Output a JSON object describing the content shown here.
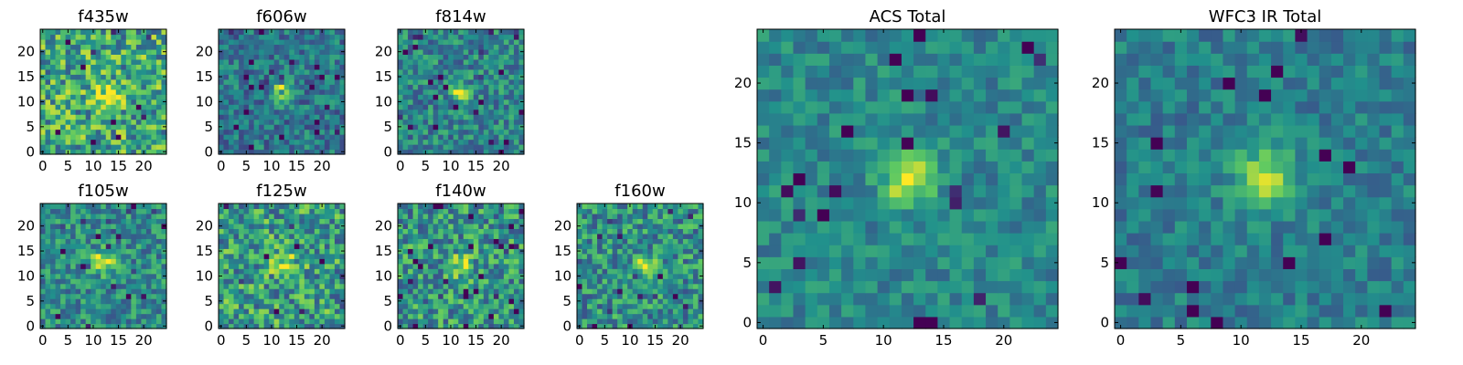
{
  "figure": {
    "colormap": "viridis",
    "colormap_stops": [
      "#440154",
      "#3b528b",
      "#21918c",
      "#5ec962",
      "#fde725"
    ]
  },
  "chart_data": [
    {
      "type": "heatmap",
      "title": "f435w",
      "grid_size": 25,
      "center": [
        13,
        11
      ],
      "peak": 0.35,
      "sigma": 2.0,
      "noise": 0.32,
      "base": 0.6,
      "seed": 11,
      "xticks": [
        "0",
        "5",
        "10",
        "15",
        "20"
      ],
      "yticks": [
        "0",
        "5",
        "10",
        "15",
        "20"
      ],
      "xlim": [
        0,
        25
      ],
      "ylim": [
        0,
        25
      ]
    },
    {
      "type": "heatmap",
      "title": "f606w",
      "grid_size": 25,
      "center": [
        12,
        12
      ],
      "peak": 0.55,
      "sigma": 1.3,
      "noise": 0.2,
      "base": 0.4,
      "seed": 23,
      "xticks": [
        "0",
        "5",
        "10",
        "15",
        "20"
      ],
      "yticks": [
        "0",
        "5",
        "10",
        "15",
        "20"
      ],
      "xlim": [
        0,
        25
      ],
      "ylim": [
        0,
        25
      ]
    },
    {
      "type": "heatmap",
      "title": "f814w",
      "grid_size": 25,
      "center": [
        12,
        12
      ],
      "peak": 0.5,
      "sigma": 1.3,
      "noise": 0.22,
      "base": 0.45,
      "seed": 37,
      "xticks": [
        "0",
        "5",
        "10",
        "15",
        "20"
      ],
      "yticks": [
        "0",
        "5",
        "10",
        "15",
        "20"
      ],
      "xlim": [
        0,
        25
      ],
      "ylim": [
        0,
        25
      ]
    },
    {
      "type": "heatmap",
      "title": "f105w",
      "grid_size": 25,
      "center": [
        12,
        13
      ],
      "peak": 0.45,
      "sigma": 1.6,
      "noise": 0.22,
      "base": 0.48,
      "seed": 41,
      "xticks": [
        "0",
        "5",
        "10",
        "15",
        "20"
      ],
      "yticks": [
        "0",
        "5",
        "10",
        "15",
        "20"
      ],
      "xlim": [
        0,
        25
      ],
      "ylim": [
        0,
        25
      ]
    },
    {
      "type": "heatmap",
      "title": "f125w",
      "grid_size": 25,
      "center": [
        13,
        12
      ],
      "peak": 0.4,
      "sigma": 1.8,
      "noise": 0.3,
      "base": 0.55,
      "seed": 53,
      "xticks": [
        "0",
        "5",
        "10",
        "15",
        "20"
      ],
      "yticks": [
        "0",
        "5",
        "10",
        "15",
        "20"
      ],
      "xlim": [
        0,
        25
      ],
      "ylim": [
        0,
        25
      ]
    },
    {
      "type": "heatmap",
      "title": "f140w",
      "grid_size": 25,
      "center": [
        12,
        12
      ],
      "peak": 0.4,
      "sigma": 1.5,
      "noise": 0.28,
      "base": 0.52,
      "seed": 67,
      "xticks": [
        "0",
        "5",
        "10",
        "15",
        "20"
      ],
      "yticks": [
        "0",
        "5",
        "10",
        "15",
        "20"
      ],
      "xlim": [
        0,
        25
      ],
      "ylim": [
        0,
        25
      ]
    },
    {
      "type": "heatmap",
      "title": "f160w",
      "grid_size": 25,
      "center": [
        13,
        12
      ],
      "peak": 0.45,
      "sigma": 1.4,
      "noise": 0.26,
      "base": 0.5,
      "seed": 79,
      "xticks": [
        "0",
        "5",
        "10",
        "15",
        "20"
      ],
      "yticks": [
        "0",
        "5",
        "10",
        "15",
        "20"
      ],
      "xlim": [
        0,
        25
      ],
      "ylim": [
        0,
        25
      ]
    },
    {
      "type": "heatmap",
      "title": "ACS Total",
      "grid_size": 25,
      "center": [
        12,
        12
      ],
      "peak": 0.55,
      "sigma": 1.4,
      "noise": 0.14,
      "base": 0.46,
      "seed": 97,
      "xticks": [
        "0",
        "5",
        "10",
        "15",
        "20"
      ],
      "yticks": [
        "0",
        "5",
        "10",
        "15",
        "20"
      ],
      "xlim": [
        0,
        25
      ],
      "ylim": [
        0,
        25
      ]
    },
    {
      "type": "heatmap",
      "title": "WFC3 IR Total",
      "grid_size": 25,
      "center": [
        12,
        12
      ],
      "peak": 0.5,
      "sigma": 1.8,
      "noise": 0.14,
      "base": 0.42,
      "seed": 113,
      "xticks": [
        "0",
        "5",
        "10",
        "15",
        "20"
      ],
      "yticks": [
        "0",
        "5",
        "10",
        "15",
        "20"
      ],
      "xlim": [
        0,
        25
      ],
      "ylim": [
        0,
        25
      ]
    }
  ]
}
